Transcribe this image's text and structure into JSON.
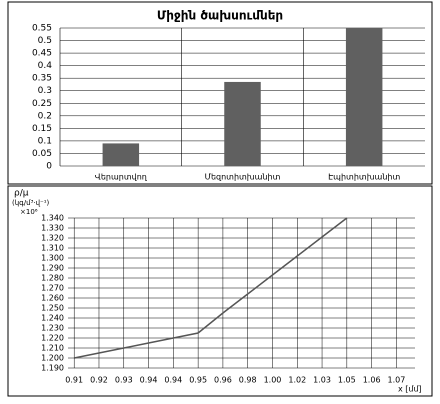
{
  "chart_data": [
    {
      "type": "bar",
      "title": "Միջին ծախսումներ",
      "categories": [
        "Վերարտվող",
        "Մեզոտիտխանիտ",
        "Էպիտիտխանիտ"
      ],
      "values": [
        0.09,
        0.335,
        0.55
      ],
      "color": "#606060",
      "ylim": [
        0,
        0.55
      ],
      "yticks": [
        0,
        0.05,
        0.1,
        0.15,
        0.2,
        0.25,
        0.3,
        0.35,
        0.4,
        0.45,
        0.5,
        0.55
      ],
      "grid": true
    },
    {
      "type": "line",
      "y_label": "ρ/μ",
      "y_unit": "(կգ/մ³·վ⁻¹)",
      "y_multiplier": "×10⁶",
      "x_label": "x [մմ]",
      "categories": [
        "0.91",
        "0.92",
        "0.93",
        "0.94",
        "0.94",
        "0.95",
        "0.96",
        "0.98",
        "1.00",
        "1.02",
        "1.03",
        "1.05",
        "1.06",
        "1.07"
      ],
      "series": [
        {
          "name": null,
          "color": "#555555",
          "values": [
            1.2,
            1.205,
            1.21,
            1.215,
            1.22,
            1.225,
            1.245,
            1.264,
            1.283,
            1.302,
            1.321,
            1.34,
            null,
            null
          ]
        }
      ],
      "ylim": [
        1.19,
        1.34
      ],
      "yticks": [
        {
          "value": 1.19,
          "label": "1.190"
        },
        {
          "value": 1.2,
          "label": "1.200"
        },
        {
          "value": 1.21,
          "label": "1.210"
        },
        {
          "value": 1.22,
          "label": "1.220"
        },
        {
          "value": 1.23,
          "label": "1.230"
        },
        {
          "value": 1.24,
          "label": "1.240"
        },
        {
          "value": 1.25,
          "label": "1.250"
        },
        {
          "value": 1.26,
          "label": "1.260"
        },
        {
          "value": 1.27,
          "label": "1.270"
        },
        {
          "value": 1.28,
          "label": "1.280"
        },
        {
          "value": 1.29,
          "label": "1.290"
        },
        {
          "value": 1.3,
          "label": "1.300"
        },
        {
          "value": 1.31,
          "label": "1.310"
        },
        {
          "value": 1.32,
          "label": "1.320"
        },
        {
          "value": 1.33,
          "label": "1.330"
        },
        {
          "value": 1.34,
          "label": "1.340"
        }
      ],
      "grid": true
    }
  ]
}
